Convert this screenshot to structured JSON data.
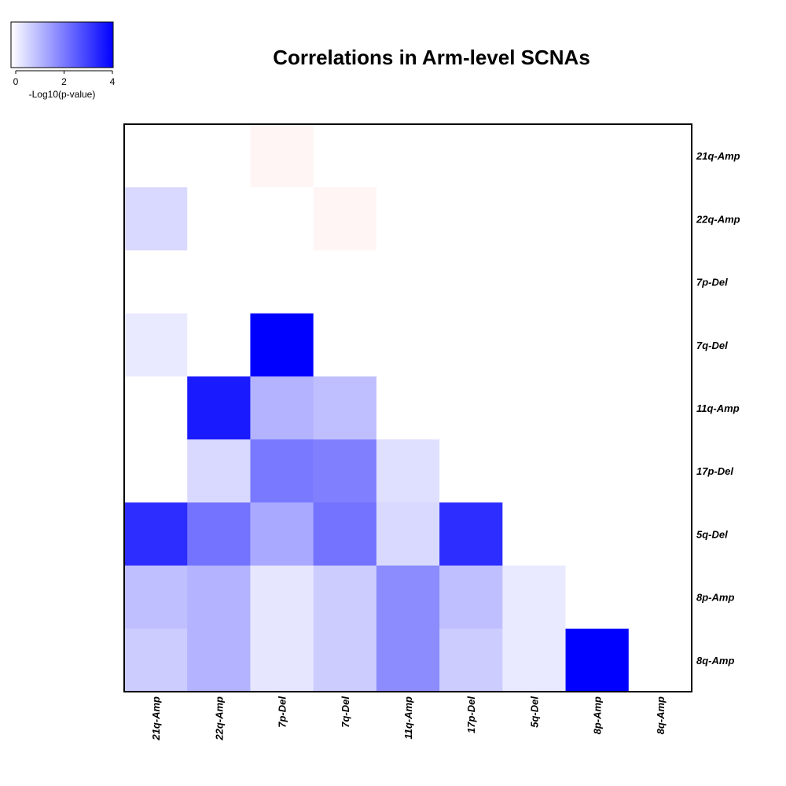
{
  "chart_data": {
    "type": "heatmap",
    "title": "Correlations in Arm-level SCNAs",
    "row_labels": [
      "21q-Amp",
      "22q-Amp",
      "7p-Del",
      "7q-Del",
      "11q-Amp",
      "17p-Del",
      "5q-Del",
      "8p-Amp",
      "8q-Amp"
    ],
    "col_labels": [
      "21q-Amp",
      "22q-Amp",
      "7p-Del",
      "7q-Del",
      "11q-Amp",
      "17p-Del",
      "5q-Del",
      "8p-Amp",
      "8q-Amp"
    ],
    "legend": {
      "label": "-Log10(p-value)",
      "ticks": [
        "0",
        "2",
        "4"
      ],
      "min": 0,
      "max": 4,
      "low_color": "#ffffff",
      "high_color": "#0000ff",
      "negative_color": "#ff0000"
    },
    "values": [
      [
        0,
        0,
        -0.15,
        0,
        0,
        0,
        0,
        0,
        0
      ],
      [
        0.6,
        0,
        0,
        -0.15,
        0,
        0,
        0,
        0,
        0
      ],
      [
        0,
        0,
        0,
        0,
        0,
        0,
        0,
        0,
        0
      ],
      [
        0.35,
        0,
        4.0,
        0,
        0,
        0,
        0,
        0,
        0
      ],
      [
        0,
        3.6,
        1.2,
        1.0,
        0,
        0,
        0,
        0,
        0
      ],
      [
        0,
        0.6,
        2.1,
        2.0,
        0.5,
        0,
        0,
        0,
        0
      ],
      [
        3.3,
        2.2,
        1.35,
        2.2,
        0.6,
        3.3,
        0,
        0,
        0
      ],
      [
        1.0,
        1.2,
        0.4,
        0.8,
        1.8,
        1.0,
        0.35,
        0,
        0
      ],
      [
        0.8,
        1.2,
        0.4,
        0.8,
        1.8,
        0.8,
        0.35,
        4.0,
        0
      ]
    ]
  }
}
